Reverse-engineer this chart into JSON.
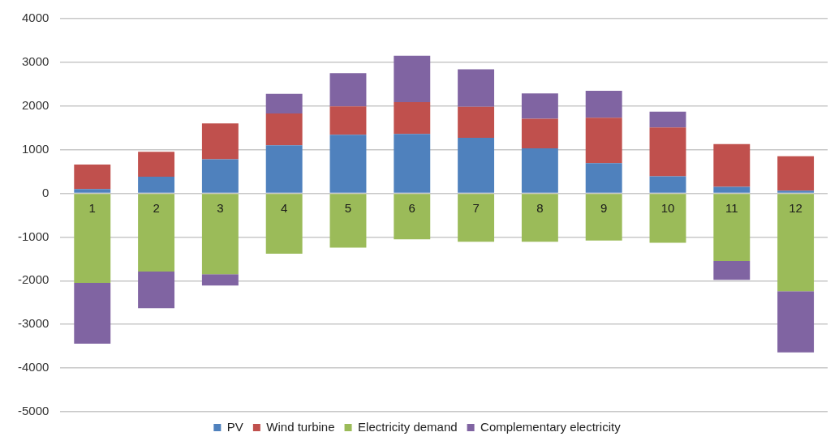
{
  "chart_data": {
    "type": "bar",
    "stacked": true,
    "categories": [
      "1",
      "2",
      "3",
      "4",
      "5",
      "6",
      "7",
      "8",
      "9",
      "10",
      "11",
      "12"
    ],
    "series": [
      {
        "name": "PV",
        "color": "#4f81bd",
        "values": [
          100,
          380,
          780,
          1100,
          1340,
          1360,
          1270,
          1030,
          690,
          390,
          150,
          60
        ]
      },
      {
        "name": "Wind turbine",
        "color": "#c0504d",
        "values": [
          560,
          570,
          820,
          730,
          650,
          730,
          710,
          680,
          1040,
          1120,
          980,
          790
        ]
      },
      {
        "name": "Electricity demand",
        "color": "#9bbb59",
        "values": [
          -2050,
          -1790,
          -1850,
          -1380,
          -1240,
          -1050,
          -1110,
          -1110,
          -1080,
          -1130,
          -1550,
          -2240
        ]
      },
      {
        "name": "Complementary electricity",
        "color": "#8064a2",
        "values": [
          -1390,
          -840,
          -260,
          450,
          760,
          1060,
          860,
          580,
          620,
          360,
          -430,
          -1400
        ]
      }
    ],
    "ylim": [
      -5000,
      4000
    ],
    "yticks": [
      -5000,
      -4000,
      -3000,
      -2000,
      -1000,
      0,
      1000,
      2000,
      3000,
      4000
    ],
    "grid": "y",
    "legend": "bottom"
  }
}
